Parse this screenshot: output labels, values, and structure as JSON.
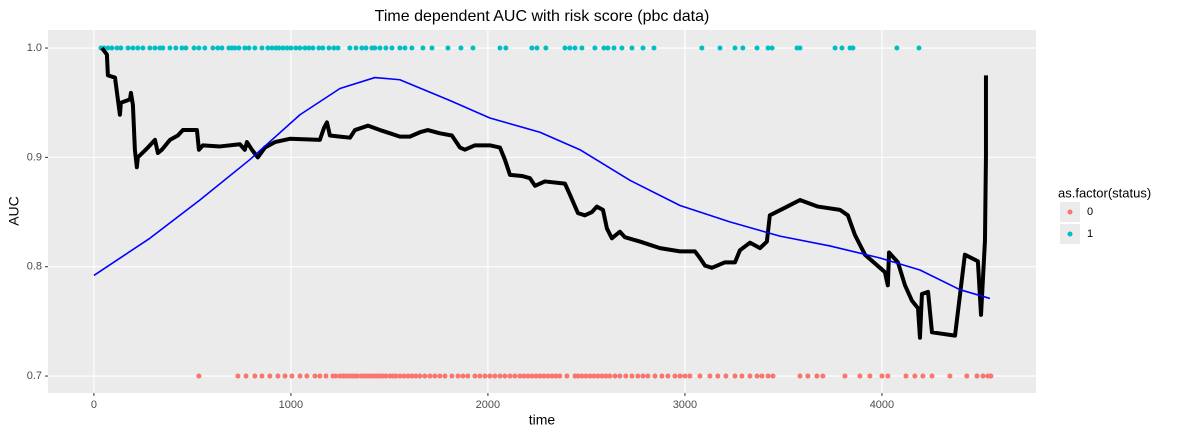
{
  "chart_data": {
    "type": "line",
    "title": "Time dependent AUC with risk score (pbc data)",
    "x_label": "time",
    "y_label": "AUC",
    "legend_title": "as.factor(status)",
    "xlim": [
      -233,
      4782
    ],
    "ylim": [
      0.6845,
      1.0165
    ],
    "xticks": [
      0,
      1000,
      2000,
      3000,
      4000
    ],
    "yticks": [
      0.7,
      0.8,
      0.9,
      {
        "value": 1,
        "label": "1.0"
      }
    ],
    "grid": true,
    "series": [
      {
        "type": "line",
        "color": "#000000",
        "x": [
          41,
          66,
          71,
          107,
          132,
          137,
          183,
          188,
          198,
          208,
          218,
          223,
          274,
          310,
          325,
          345,
          386,
          426,
          452,
          523,
          533,
          553,
          640,
          741,
          766,
          777,
          802,
          832,
          868,
          919,
          995,
          1147,
          1168,
          1183,
          1198,
          1249,
          1300,
          1325,
          1391,
          1452,
          1503,
          1553,
          1604,
          1655,
          1695,
          1756,
          1817,
          1858,
          1883,
          1934,
          2010,
          2061,
          2086,
          2112,
          2173,
          2213,
          2239,
          2289,
          2391,
          2416,
          2457,
          2492,
          2528,
          2553,
          2584,
          2604,
          2629,
          2670,
          2695,
          2772,
          2873,
          2975,
          3051,
          3076,
          3102,
          3137,
          3203,
          3254,
          3279,
          3330,
          3381,
          3416,
          3431,
          3508,
          3584,
          3675,
          3787,
          3827,
          3863,
          3914,
          3990,
          4015,
          4030,
          4036,
          4081,
          4117,
          4152,
          4183,
          4193,
          4203,
          4234,
          4254,
          4371,
          4421,
          4487,
          4503,
          4523,
          4528,
          4528
        ],
        "values": [
          1.0,
          0.994,
          0.975,
          0.973,
          0.939,
          0.95,
          0.953,
          0.959,
          0.948,
          0.907,
          0.891,
          0.9,
          0.909,
          0.916,
          0.904,
          0.907,
          0.916,
          0.92,
          0.925,
          0.925,
          0.907,
          0.911,
          0.91,
          0.912,
          0.907,
          0.914,
          0.907,
          0.9,
          0.909,
          0.914,
          0.917,
          0.916,
          0.927,
          0.932,
          0.92,
          0.919,
          0.918,
          0.925,
          0.929,
          0.925,
          0.922,
          0.919,
          0.919,
          0.923,
          0.925,
          0.922,
          0.92,
          0.909,
          0.907,
          0.911,
          0.911,
          0.909,
          0.898,
          0.884,
          0.883,
          0.881,
          0.874,
          0.878,
          0.876,
          0.866,
          0.849,
          0.847,
          0.85,
          0.855,
          0.852,
          0.835,
          0.826,
          0.832,
          0.827,
          0.823,
          0.817,
          0.814,
          0.814,
          0.808,
          0.801,
          0.799,
          0.804,
          0.804,
          0.815,
          0.822,
          0.817,
          0.823,
          0.847,
          0.854,
          0.861,
          0.855,
          0.852,
          0.847,
          0.829,
          0.811,
          0.799,
          0.795,
          0.783,
          0.813,
          0.804,
          0.783,
          0.769,
          0.762,
          0.735,
          0.775,
          0.777,
          0.74,
          0.737,
          0.811,
          0.805,
          0.756,
          0.824,
          0.902,
          0.975
        ]
      },
      {
        "type": "line",
        "color": "#0000ff",
        "x": [
          0,
          284,
          538,
          792,
          1046,
          1249,
          1426,
          1553,
          1807,
          2010,
          2264,
          2467,
          2721,
          2975,
          3228,
          3482,
          3736,
          3990,
          4193,
          4396,
          4548
        ],
        "values": [
          0.792,
          0.826,
          0.861,
          0.898,
          0.939,
          0.963,
          0.973,
          0.971,
          0.952,
          0.936,
          0.923,
          0.907,
          0.879,
          0.856,
          0.841,
          0.828,
          0.819,
          0.808,
          0.797,
          0.779,
          0.771
        ]
      },
      {
        "type": "scatter",
        "name": "0",
        "color": "#F8766D",
        "x": [
          533,
          731,
          772,
          817,
          853,
          893,
          934,
          970,
          1005,
          1046,
          1081,
          1122,
          1147,
          1178,
          1213,
          1228,
          1249,
          1264,
          1279,
          1294,
          1310,
          1325,
          1340,
          1360,
          1376,
          1391,
          1406,
          1421,
          1437,
          1452,
          1467,
          1482,
          1503,
          1518,
          1533,
          1553,
          1574,
          1594,
          1614,
          1634,
          1655,
          1680,
          1706,
          1731,
          1756,
          1782,
          1817,
          1848,
          1873,
          1898,
          1934,
          1959,
          1985,
          2010,
          2035,
          2061,
          2086,
          2112,
          2137,
          2162,
          2183,
          2203,
          2223,
          2244,
          2264,
          2284,
          2305,
          2325,
          2345,
          2365,
          2401,
          2442,
          2457,
          2477,
          2497,
          2518,
          2538,
          2558,
          2579,
          2599,
          2619,
          2645,
          2670,
          2700,
          2731,
          2761,
          2787,
          2812,
          2848,
          2883,
          2914,
          2949,
          2975,
          3000,
          3025,
          3076,
          3127,
          3167,
          3208,
          3254,
          3289,
          3330,
          3366,
          3391,
          3422,
          3447,
          3584,
          3624,
          3670,
          3700,
          3812,
          3888,
          3939,
          4000,
          4030,
          4122,
          4167,
          4208,
          4254,
          4345,
          4431,
          4482,
          4513,
          4538,
          4553
        ],
        "values": [
          0.7,
          0.7,
          0.7,
          0.7,
          0.7,
          0.7,
          0.7,
          0.7,
          0.7,
          0.7,
          0.7,
          0.7,
          0.7,
          0.7,
          0.7,
          0.7,
          0.7,
          0.7,
          0.7,
          0.7,
          0.7,
          0.7,
          0.7,
          0.7,
          0.7,
          0.7,
          0.7,
          0.7,
          0.7,
          0.7,
          0.7,
          0.7,
          0.7,
          0.7,
          0.7,
          0.7,
          0.7,
          0.7,
          0.7,
          0.7,
          0.7,
          0.7,
          0.7,
          0.7,
          0.7,
          0.7,
          0.7,
          0.7,
          0.7,
          0.7,
          0.7,
          0.7,
          0.7,
          0.7,
          0.7,
          0.7,
          0.7,
          0.7,
          0.7,
          0.7,
          0.7,
          0.7,
          0.7,
          0.7,
          0.7,
          0.7,
          0.7,
          0.7,
          0.7,
          0.7,
          0.7,
          0.7,
          0.7,
          0.7,
          0.7,
          0.7,
          0.7,
          0.7,
          0.7,
          0.7,
          0.7,
          0.7,
          0.7,
          0.7,
          0.7,
          0.7,
          0.7,
          0.7,
          0.7,
          0.7,
          0.7,
          0.7,
          0.7,
          0.7,
          0.7,
          0.7,
          0.7,
          0.7,
          0.7,
          0.7,
          0.7,
          0.7,
          0.7,
          0.7,
          0.7,
          0.7,
          0.7,
          0.7,
          0.7,
          0.7,
          0.7,
          0.7,
          0.7,
          0.7,
          0.7,
          0.7,
          0.7,
          0.7,
          0.7,
          0.7,
          0.7,
          0.7,
          0.7,
          0.7,
          0.7
        ]
      },
      {
        "type": "scatter",
        "name": "1",
        "color": "#00BFC4",
        "x": [
          36,
          51,
          71,
          91,
          117,
          137,
          173,
          198,
          223,
          249,
          284,
          310,
          335,
          350,
          386,
          416,
          447,
          467,
          508,
          533,
          563,
          604,
          629,
          650,
          685,
          701,
          716,
          736,
          766,
          787,
          817,
          853,
          883,
          904,
          924,
          939,
          959,
          980,
          1000,
          1025,
          1046,
          1071,
          1091,
          1112,
          1142,
          1162,
          1193,
          1218,
          1239,
          1299,
          1330,
          1360,
          1381,
          1411,
          1426,
          1452,
          1482,
          1513,
          1553,
          1579,
          1614,
          1670,
          1716,
          1797,
          1863,
          1924,
          2061,
          2091,
          2223,
          2249,
          2294,
          2391,
          2416,
          2442,
          2477,
          2543,
          2589,
          2609,
          2640,
          2680,
          2731,
          2787,
          2843,
          3086,
          3178,
          3254,
          3294,
          3366,
          3422,
          3442,
          3569,
          3584,
          3762,
          3797,
          3838,
          3853,
          4076,
          4188
        ],
        "values": [
          1,
          1,
          1,
          1,
          1,
          1,
          1,
          1,
          1,
          1,
          1,
          1,
          1,
          1,
          1,
          1,
          1,
          1,
          1,
          1,
          1,
          1,
          1,
          1,
          1,
          1,
          1,
          1,
          1,
          1,
          1,
          1,
          1,
          1,
          1,
          1,
          1,
          1,
          1,
          1,
          1,
          1,
          1,
          1,
          1,
          1,
          1,
          1,
          1,
          1,
          1,
          1,
          1,
          1,
          1,
          1,
          1,
          1,
          1,
          1,
          1,
          1,
          1,
          1,
          1,
          1,
          1,
          1,
          1,
          1,
          1,
          1,
          1,
          1,
          1,
          1,
          1,
          1,
          1,
          1,
          1,
          1,
          1,
          1,
          1,
          1,
          1,
          1,
          1,
          1,
          1,
          1,
          1,
          1,
          1,
          1,
          1,
          1
        ]
      }
    ]
  }
}
